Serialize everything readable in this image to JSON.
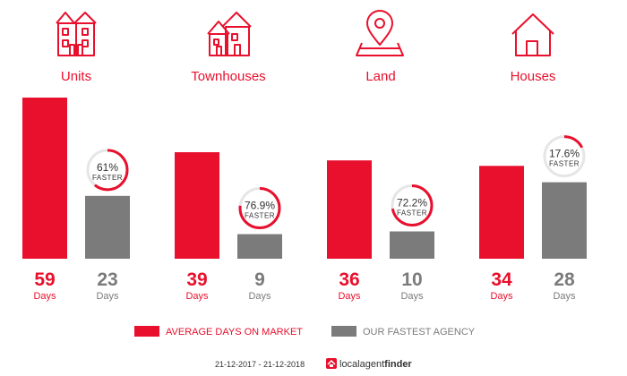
{
  "chart_data": {
    "type": "bar",
    "categories": [
      "Units",
      "Townhouses",
      "Land",
      "Houses"
    ],
    "icons": [
      "units-icon",
      "townhouses-icon",
      "land-pin-icon",
      "house-icon"
    ],
    "series": [
      {
        "name": "AVERAGE DAYS ON MARKET",
        "color": "#e8102d",
        "values": [
          59,
          39,
          36,
          34
        ]
      },
      {
        "name": "OUR FASTEST AGENCY",
        "color": "#7b7b7b",
        "values": [
          23,
          9,
          10,
          28
        ]
      }
    ],
    "faster_pct": [
      "61%",
      "76.9%",
      "72.2%",
      "17.6%"
    ],
    "faster_fraction": [
      0.61,
      0.769,
      0.722,
      0.176
    ],
    "faster_label": "FASTER",
    "unit_label": "Days",
    "ylim": [
      0,
      59
    ],
    "grid": false,
    "legend": "bottom"
  },
  "colors": {
    "accent": "#e8102d",
    "secondary": "#7b7b7b",
    "ring_bg": "#e6e6e6",
    "text": "#333333"
  },
  "footer": {
    "date_range": "21-12-2017 - 21-12-2018",
    "brand_icon": "localagentfinder-logo-icon",
    "brand_part1": "localagent",
    "brand_part2": "finder"
  }
}
